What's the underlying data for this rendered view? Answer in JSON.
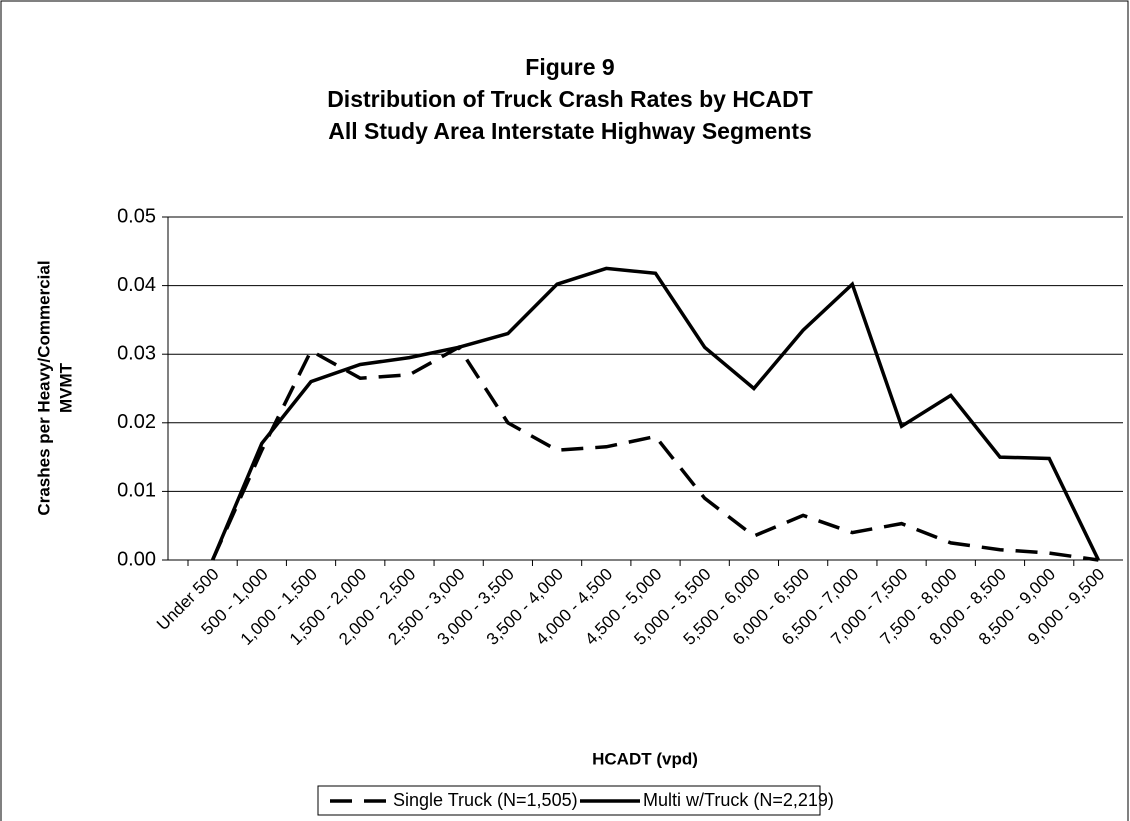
{
  "chart_data": {
    "type": "line",
    "title": "Figure 9",
    "subtitle": [
      "Distribution of Truck Crash Rates by HCADT",
      "All Study Area Interstate Highway Segments"
    ],
    "y_label": [
      "Crashes per Heavy/Commercial",
      "MVMT"
    ],
    "x_label": "HCADT (vpd)",
    "categories": [
      "Under 500",
      "500 - 1,000",
      "1,000 - 1,500",
      "1,500 - 2,000",
      "2,000 - 2,500",
      "2,500 - 3,000",
      "3,000 - 3,500",
      "3,500 - 4,000",
      "4,000 - 4,500",
      "4,500 - 5,000",
      "5,000 - 5,500",
      "5,500 - 6,000",
      "6,000 - 6,500",
      "6,500 - 7,000",
      "7,000 - 7,500",
      "7,500 - 8,000",
      "8,000 - 8,500",
      "8,500 - 9,000",
      "9,000 - 9,500"
    ],
    "series": [
      {
        "name": "Single Truck (N=1,505)",
        "color": "#000000",
        "dash": true,
        "values": [
          0,
          0.016,
          0.0305,
          0.0265,
          0.027,
          0.031,
          0.02,
          0.016,
          0.0165,
          0.018,
          0.009,
          0.0035,
          0.0065,
          0.004,
          0.0053,
          0.0025,
          0.0015,
          0.001,
          0
        ]
      },
      {
        "name": "Multi w/Truck (N=2,219)",
        "color": "#000000",
        "dash": false,
        "values": [
          0,
          0.017,
          0.026,
          0.0285,
          0.0295,
          0.031,
          0.033,
          0.0402,
          0.0425,
          0.0418,
          0.031,
          0.025,
          0.0335,
          0.0402,
          0.0195,
          0.024,
          0.015,
          0.0148,
          0
        ]
      }
    ],
    "ylim": [
      0,
      0.05
    ],
    "yticks": [
      {
        "value": 0,
        "label": "0.00"
      },
      0.01,
      0.02,
      0.03,
      0.04,
      0.05
    ],
    "grid": true,
    "legend": "bottom"
  }
}
